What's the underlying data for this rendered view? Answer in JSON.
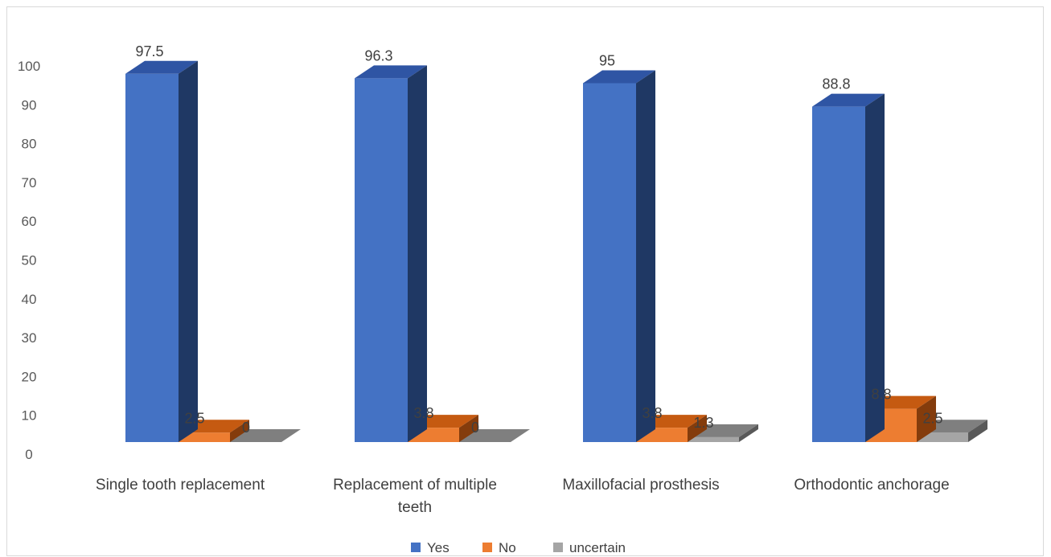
{
  "chart_data": {
    "type": "bar",
    "categories": [
      "Single tooth replacement",
      "Replacement of multiple teeth",
      "Maxillofacial prosthesis",
      "Orthodontic anchorage"
    ],
    "series": [
      {
        "name": "Yes",
        "values": [
          97.5,
          96.3,
          95,
          88.8
        ],
        "labels": [
          "97.5",
          "96.3",
          "95",
          "88.8"
        ]
      },
      {
        "name": "No",
        "values": [
          2.5,
          3.8,
          3.8,
          8.8
        ],
        "labels": [
          "2.5",
          "3.8",
          "3.8",
          "8.8"
        ]
      },
      {
        "name": "uncertain",
        "values": [
          0,
          0,
          1.3,
          2.5
        ],
        "labels": [
          "0",
          "0",
          "1.3",
          "2.5"
        ]
      }
    ],
    "ylim": [
      0,
      100
    ],
    "yticks": [
      "0",
      "10",
      "20",
      "30",
      "40",
      "50",
      "60",
      "70",
      "80",
      "90",
      "100"
    ],
    "style": "3d-clustered-column",
    "grid": false,
    "legend_position": "bottom",
    "colors": {
      "Yes": {
        "front": "#4472C4",
        "top": "#2F55A4",
        "side": "#1F3864"
      },
      "No": {
        "front": "#ED7D31",
        "top": "#C55A11",
        "side": "#843C0C"
      },
      "uncertain": {
        "front": "#A5A5A5",
        "top": "#7F7F7F",
        "side": "#595959"
      }
    }
  }
}
